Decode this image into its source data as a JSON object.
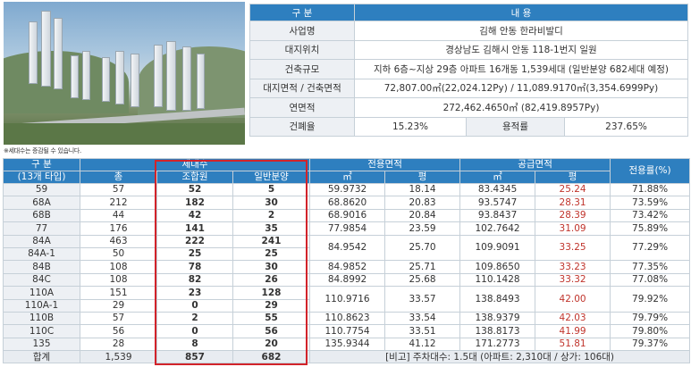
{
  "note": "※세대수는 증감될 수 있습니다.",
  "info": {
    "header": [
      "구 분",
      "내 용"
    ],
    "rows": [
      {
        "label": "사업명",
        "value": "김해 안동 한라비발디"
      },
      {
        "label": "대지위치",
        "value": "경상남도 김해시 안동 118-1번지 일원"
      },
      {
        "label": "건축규모",
        "value": "지하 6층~지상 29층 아파트 16개동 1,539세대 (일반분양 682세대 예정)"
      },
      {
        "label": "대지면적 / 건축면적",
        "value": "72,807.00㎡(22,024.12Py) / 11,089.9170㎡(3,354.6999Py)"
      },
      {
        "label": "연면적",
        "value": "272,462.4650㎡ (82,419.8957Py)"
      }
    ],
    "last_row": {
      "label1": "건폐율",
      "value1": "15.23%",
      "label2": "용적률",
      "value2": "237.65%"
    }
  },
  "table": {
    "head1": {
      "type": "구 분",
      "households": "세대수",
      "exclusive_area": "전용면적",
      "supply_area": "공급면적",
      "ratio": "전용률(%)"
    },
    "head2": {
      "type": "(13개 타입)",
      "total": "총",
      "union": "조합원",
      "general": "일반분양",
      "sqm": "㎡",
      "py": "평",
      "sqm2": "㎡",
      "py2": "평"
    },
    "rows": [
      {
        "type": "59",
        "total": "57",
        "union": "52",
        "general": "5",
        "ex_m": "59.9732",
        "ex_p": "18.14",
        "su_m": "83.4345",
        "su_p": "25.24",
        "ratio": "71.88%"
      },
      {
        "type": "68A",
        "total": "212",
        "union": "182",
        "general": "30",
        "ex_m": "68.8620",
        "ex_p": "20.83",
        "su_m": "93.5747",
        "su_p": "28.31",
        "ratio": "73.59%"
      },
      {
        "type": "68B",
        "total": "44",
        "union": "42",
        "general": "2",
        "ex_m": "68.9016",
        "ex_p": "20.84",
        "su_m": "93.8437",
        "su_p": "28.39",
        "ratio": "73.42%"
      },
      {
        "type": "77",
        "total": "176",
        "union": "141",
        "general": "35",
        "ex_m": "77.9854",
        "ex_p": "23.59",
        "su_m": "102.7642",
        "su_p": "31.09",
        "ratio": "75.89%"
      },
      {
        "type": "84A",
        "total": "463",
        "union": "222",
        "general": "241",
        "ex_m": "84.9542",
        "ex_p": "25.70",
        "su_m": "109.9091",
        "su_p": "33.25",
        "ratio": "77.29%"
      },
      {
        "type": "84A-1",
        "total": "50",
        "union": "25",
        "general": "25"
      },
      {
        "type": "84B",
        "total": "108",
        "union": "78",
        "general": "30",
        "ex_m": "84.9852",
        "ex_p": "25.71",
        "su_m": "109.8650",
        "su_p": "33.23",
        "ratio": "77.35%"
      },
      {
        "type": "84C",
        "total": "108",
        "union": "82",
        "general": "26",
        "ex_m": "84.8992",
        "ex_p": "25.68",
        "su_m": "110.1428",
        "su_p": "33.32",
        "ratio": "77.08%"
      },
      {
        "type": "110A",
        "total": "151",
        "union": "23",
        "general": "128",
        "ex_m": "110.9716",
        "ex_p": "33.57",
        "su_m": "138.8493",
        "su_p": "42.00",
        "ratio": "79.92%"
      },
      {
        "type": "110A-1",
        "total": "29",
        "union": "0",
        "general": "29"
      },
      {
        "type": "110B",
        "total": "57",
        "union": "2",
        "general": "55",
        "ex_m": "110.8623",
        "ex_p": "33.54",
        "su_m": "138.9379",
        "su_p": "42.03",
        "ratio": "79.79%"
      },
      {
        "type": "110C",
        "total": "56",
        "union": "0",
        "general": "56",
        "ex_m": "110.7754",
        "ex_p": "33.51",
        "su_m": "138.8173",
        "su_p": "41.99",
        "ratio": "79.80%"
      },
      {
        "type": "135",
        "total": "28",
        "union": "8",
        "general": "20",
        "ex_m": "135.9344",
        "ex_p": "41.12",
        "su_m": "171.2773",
        "su_p": "51.81",
        "ratio": "79.37%"
      }
    ],
    "total_row": {
      "label": "합계",
      "total": "1,539",
      "union": "857",
      "general": "682",
      "remark": "[비고] 주차대수: 1.5대 (아파트: 2,310대 / 상가: 106대)"
    }
  },
  "colors": {
    "header": "#2e7fbf",
    "label_bg": "#edf0f4",
    "highlight": "#d2232a",
    "supply_py": "#c0342c"
  }
}
